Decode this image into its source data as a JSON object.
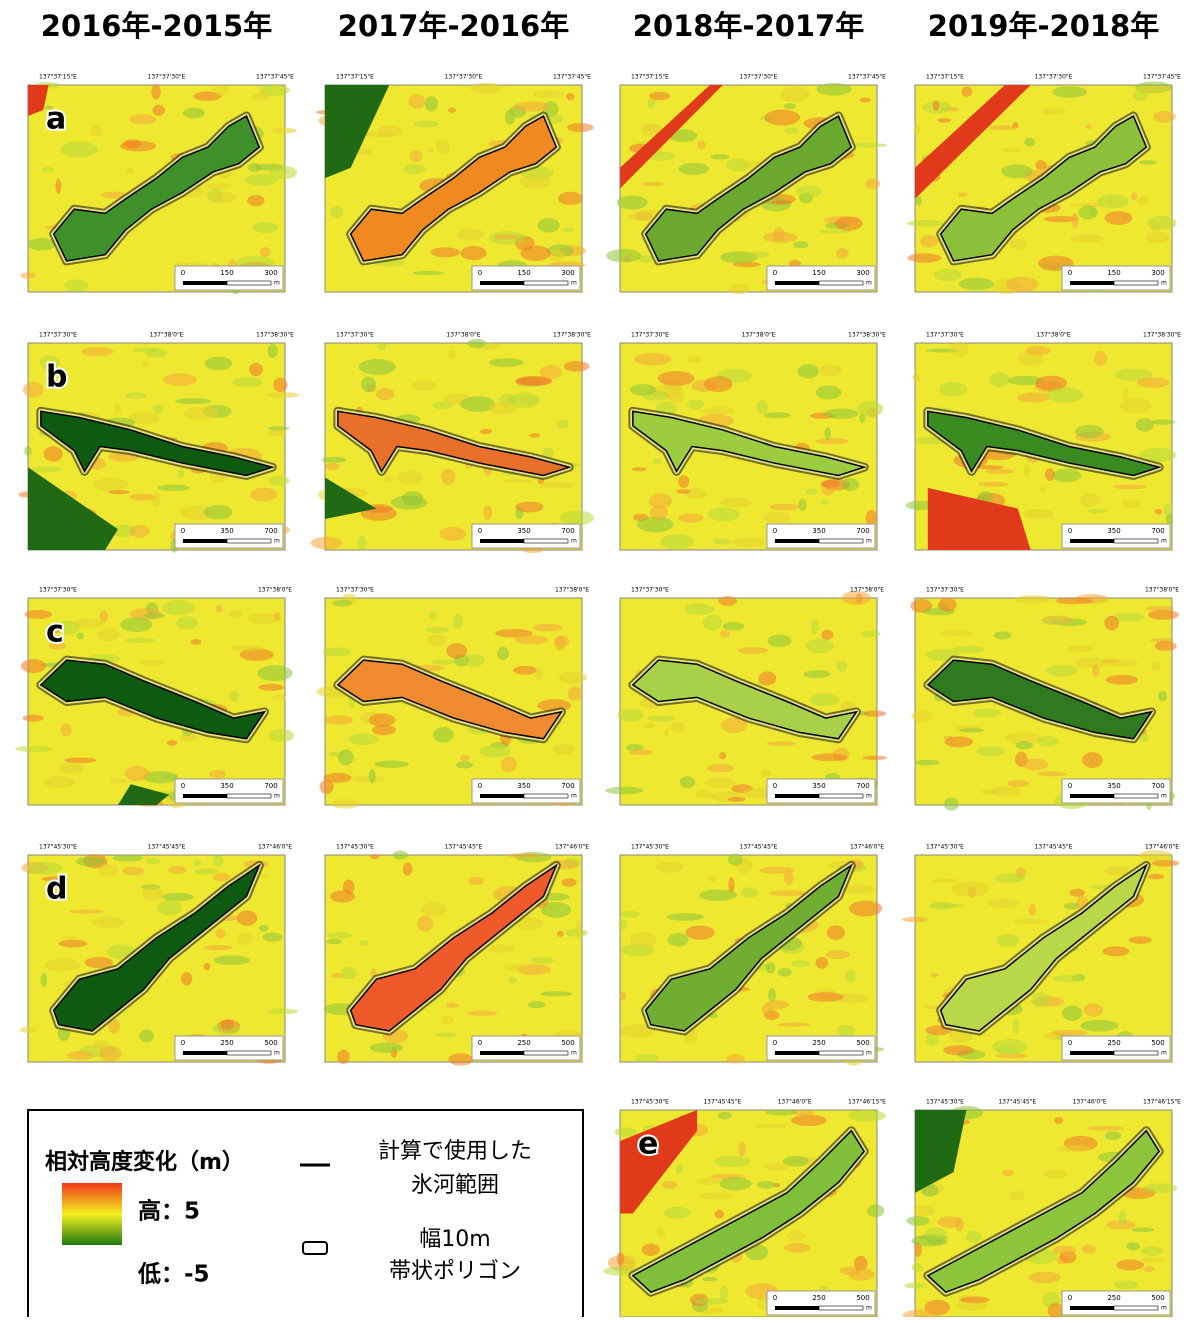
{
  "headers": [
    "2016年-2015年",
    "2017年-2016年",
    "2018年-2017年",
    "2019年-2018年"
  ],
  "rows": [
    {
      "label": "a",
      "coords": [
        "137°37'15\"E",
        "137°37'30\"E",
        "137°37'45\"E"
      ],
      "scale": [
        "0",
        "150",
        "300",
        "m"
      ]
    },
    {
      "label": "b",
      "coords": [
        "137°37'30\"E",
        "137°38'0\"E",
        "137°38'30\"E"
      ],
      "scale": [
        "0",
        "350",
        "700",
        "m"
      ]
    },
    {
      "label": "c",
      "coords": [
        "137°37'30\"E",
        "137°38'0\"E"
      ],
      "scale": [
        "0",
        "350",
        "700",
        "m"
      ]
    },
    {
      "label": "d",
      "coords": [
        "137°45'30\"E",
        "137°45'45\"E",
        "137°46'0\"E"
      ],
      "scale": [
        "0",
        "250",
        "500",
        "m"
      ]
    },
    {
      "label": "e",
      "coords": [
        "137°45'30\"E",
        "137°45'45\"E",
        "137°46'0\"E",
        "137°46'15\"E"
      ],
      "scale": [
        "0",
        "250",
        "500",
        "m"
      ]
    }
  ],
  "legend": {
    "title": "相対高度変化（m）",
    "high": "高：5",
    "low": "低：-5",
    "outline": [
      "計算で使用した",
      "氷河範囲"
    ],
    "band": [
      "幅10m",
      "帯状ポリゴン"
    ]
  }
}
